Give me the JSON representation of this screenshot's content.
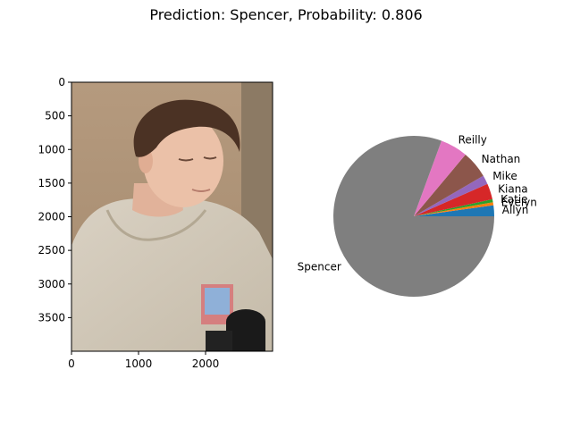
{
  "figure": {
    "suptitle": "Prediction: Spencer, Probability: 0.806"
  },
  "chart_data": [
    {
      "type": "image",
      "subject": "photo",
      "xlim": [
        0,
        3000
      ],
      "ylim": [
        4000,
        0
      ],
      "xticks": [
        0,
        1000,
        2000
      ],
      "yticks": [
        0,
        500,
        1000,
        1500,
        2000,
        2500,
        3000,
        3500
      ]
    },
    {
      "type": "pie",
      "start_angle_deg": 0,
      "counterclockwise": true,
      "slices": [
        {
          "label": "Allyn",
          "value": 0.022,
          "color": "#1f77b4"
        },
        {
          "label": "Evelyn",
          "value": 0.006,
          "color": "#ff7f0e"
        },
        {
          "label": "Katie",
          "value": 0.006,
          "color": "#2ca02c"
        },
        {
          "label": "Kiana",
          "value": 0.032,
          "color": "#d62728"
        },
        {
          "label": "Mike",
          "value": 0.018,
          "color": "#9467bd"
        },
        {
          "label": "Nathan",
          "value": 0.055,
          "color": "#8c564b"
        },
        {
          "label": "Reilly",
          "value": 0.055,
          "color": "#e377c2"
        },
        {
          "label": "Spencer",
          "value": 0.806,
          "color": "#7f7f7f"
        }
      ]
    }
  ]
}
